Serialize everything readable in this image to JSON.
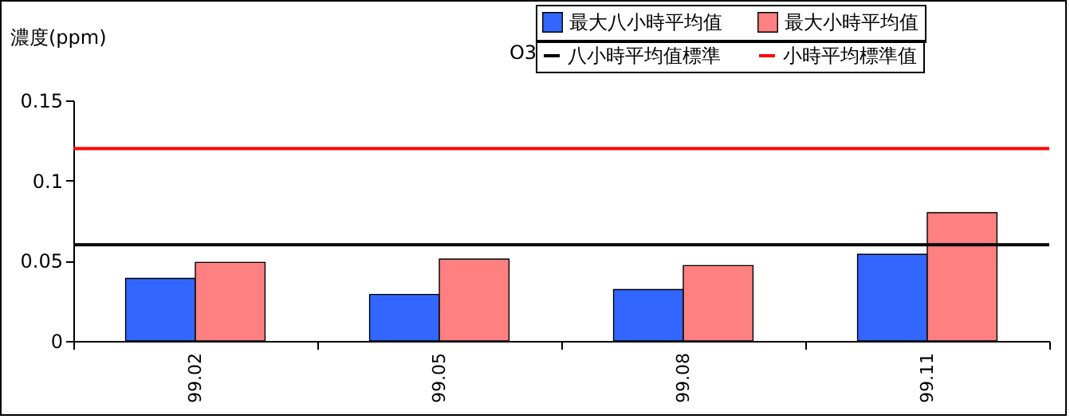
{
  "chart_data": {
    "type": "bar",
    "title": "O3",
    "ylabel": "濃度(ppm)",
    "categories": [
      "99.02",
      "99.05",
      "99.08",
      "99.11"
    ],
    "series": [
      {
        "name": "最大八小時平均值",
        "color": "#3366ff",
        "values": [
          0.039,
          0.029,
          0.032,
          0.054
        ]
      },
      {
        "name": "最大小時平均值",
        "color": "#ff8080",
        "values": [
          0.049,
          0.051,
          0.047,
          0.08
        ]
      }
    ],
    "ref_lines": [
      {
        "axis": "y",
        "value": 0.06,
        "label": "八小時平均值標準",
        "color": "#000000"
      },
      {
        "axis": "y",
        "value": 0.12,
        "label": "小時平均標準值",
        "color": "#ff0000"
      }
    ],
    "ylim": [
      0,
      0.15
    ],
    "yticks": [
      0,
      0.05,
      0.1,
      0.15
    ],
    "grid": false,
    "legend": "top right"
  }
}
